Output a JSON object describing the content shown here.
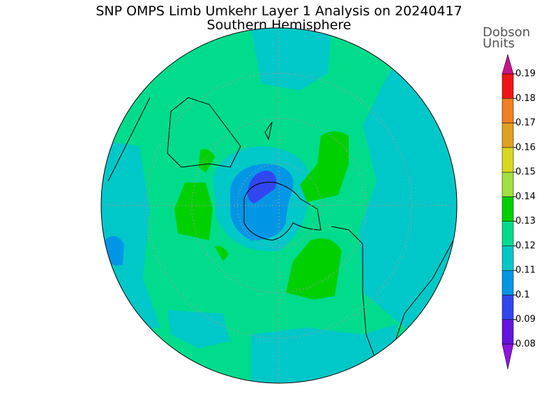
{
  "header": {
    "title": "SNP OMPS Limb Umkehr Layer 1 Analysis on 20240417",
    "subtitle": "Southern Hemisphere"
  },
  "colorbar": {
    "label_lines": [
      "Dobson",
      "Units"
    ],
    "ticks": [
      0.08,
      0.09,
      0.1,
      0.11,
      0.12,
      0.13,
      0.14,
      0.15,
      0.16,
      0.17,
      0.18,
      0.19
    ],
    "colors": [
      "#6414dc",
      "#3246f0",
      "#0096e6",
      "#00c8c8",
      "#00dc8c",
      "#00d000",
      "#a0e040",
      "#d8d820",
      "#e0a020",
      "#f08020",
      "#f01414"
    ],
    "under_color": "#8c14dc",
    "over_color": "#c8148c"
  }
}
